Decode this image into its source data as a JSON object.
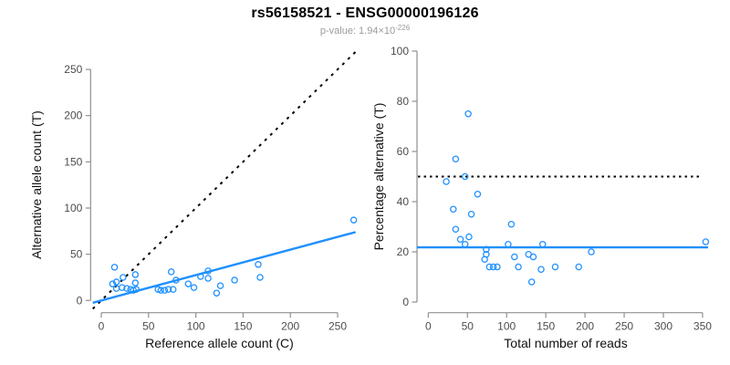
{
  "header": {
    "title": "rs56158521 - ENSG00000196126",
    "pvalue_text": "p-value: 1.94×10",
    "pvalue_exponent": "-226"
  },
  "colors": {
    "accent_blue": "#1E90FF",
    "line_black": "#000000",
    "axis_gray": "#909090",
    "tick_label_gray": "#4d4d4d",
    "subtitle_gray": "#9a9a9a"
  },
  "chart_data": [
    {
      "type": "scatter",
      "title": "",
      "xlabel": "Reference allele count (C)",
      "ylabel": "Alternative allele count (T)",
      "xlim": [
        0,
        250
      ],
      "ylim": [
        0,
        250
      ],
      "xticks": [
        0,
        50,
        100,
        150,
        200,
        250
      ],
      "yticks": [
        0,
        50,
        100,
        150,
        200,
        250
      ],
      "grid": false,
      "legend": null,
      "points": [
        [
          14,
          36
        ],
        [
          12,
          18
        ],
        [
          16,
          20
        ],
        [
          16,
          13
        ],
        [
          22,
          14
        ],
        [
          23,
          25
        ],
        [
          27,
          13
        ],
        [
          31,
          12
        ],
        [
          34,
          11
        ],
        [
          36,
          28
        ],
        [
          36,
          19
        ],
        [
          37,
          12
        ],
        [
          60,
          12
        ],
        [
          63,
          11
        ],
        [
          67,
          11
        ],
        [
          71,
          12
        ],
        [
          76,
          12
        ],
        [
          74,
          31
        ],
        [
          79,
          22
        ],
        [
          92,
          18
        ],
        [
          98,
          14
        ],
        [
          105,
          26
        ],
        [
          113,
          24
        ],
        [
          113,
          32
        ],
        [
          122,
          8
        ],
        [
          126,
          16
        ],
        [
          141,
          22
        ],
        [
          166,
          39
        ],
        [
          168,
          25
        ],
        [
          267,
          87
        ]
      ],
      "lines": [
        {
          "name": "identity-line",
          "type": "abline",
          "intercept": 0,
          "slope": 1,
          "style": "dashed",
          "color": "#000000"
        },
        {
          "name": "regression-line",
          "type": "abline",
          "intercept": 0,
          "slope": 0.275,
          "style": "solid",
          "color": "#1E90FF"
        }
      ]
    },
    {
      "type": "scatter",
      "title": "",
      "xlabel": "Total number of reads",
      "ylabel": "Percentage alternative (T)",
      "xlim": [
        0,
        350
      ],
      "ylim": [
        0,
        100
      ],
      "xticks": [
        0,
        50,
        100,
        150,
        200,
        250,
        300,
        350
      ],
      "yticks": [
        0,
        20,
        40,
        60,
        80,
        100
      ],
      "grid": false,
      "legend": null,
      "points": [
        [
          23,
          48
        ],
        [
          32,
          37
        ],
        [
          35,
          57
        ],
        [
          35,
          29
        ],
        [
          41,
          25
        ],
        [
          47,
          50
        ],
        [
          47,
          23
        ],
        [
          52,
          26
        ],
        [
          51,
          75
        ],
        [
          55,
          35
        ],
        [
          63,
          43
        ],
        [
          74,
          21
        ],
        [
          74,
          19
        ],
        [
          72,
          17
        ],
        [
          78,
          14
        ],
        [
          83,
          14
        ],
        [
          88,
          14
        ],
        [
          102,
          23
        ],
        [
          106,
          31
        ],
        [
          110,
          18
        ],
        [
          115,
          14
        ],
        [
          128,
          19
        ],
        [
          134,
          18
        ],
        [
          132,
          8
        ],
        [
          144,
          13
        ],
        [
          146,
          23
        ],
        [
          162,
          14
        ],
        [
          192,
          14
        ],
        [
          208,
          20
        ],
        [
          354,
          24
        ]
      ],
      "lines": [
        {
          "name": "fifty-percent-line",
          "type": "hline",
          "y": 50,
          "style": "dashed",
          "color": "#000000"
        },
        {
          "name": "mean-percentage-line",
          "type": "hline",
          "y": 21.8,
          "style": "solid",
          "color": "#1E90FF"
        }
      ]
    }
  ]
}
